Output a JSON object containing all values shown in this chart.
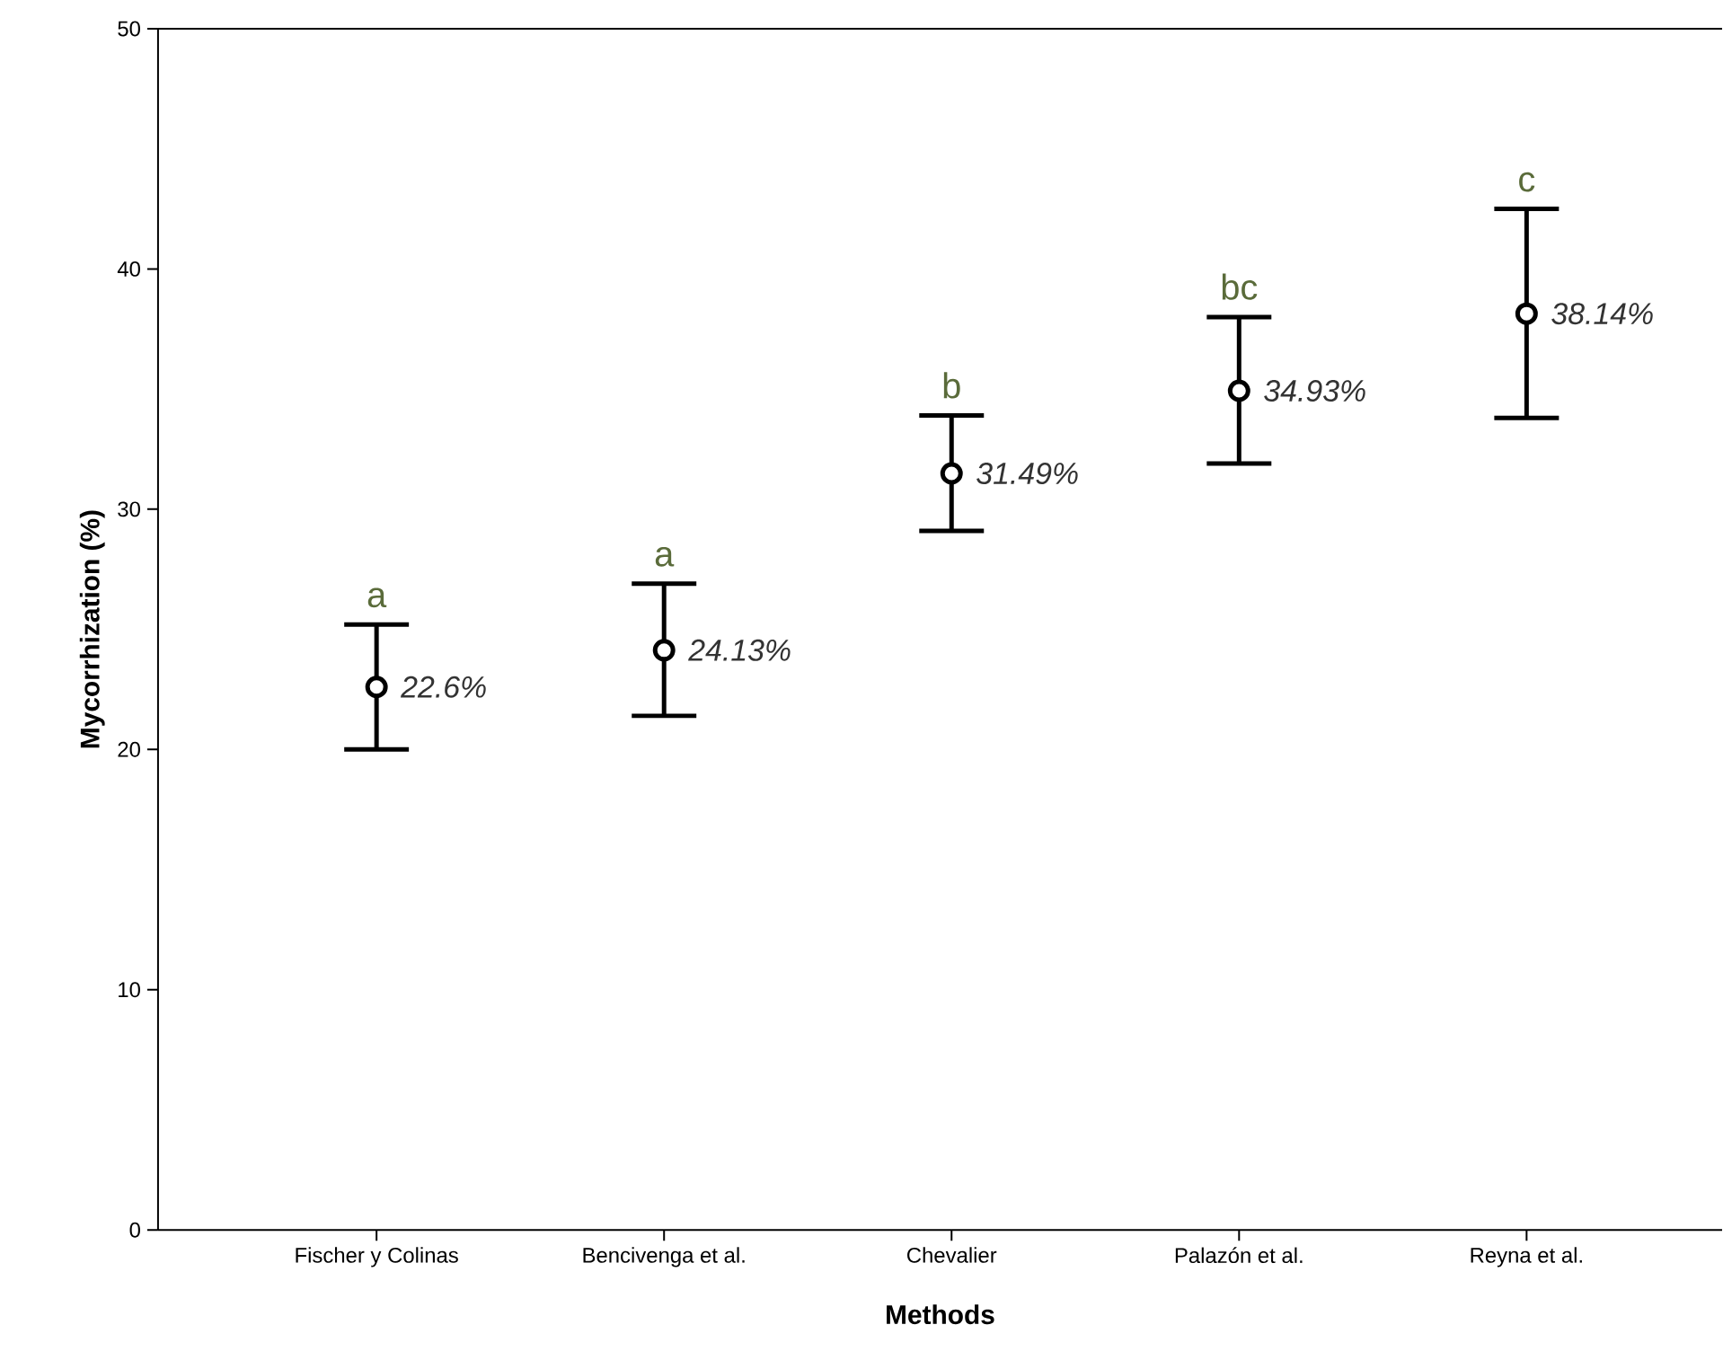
{
  "chart_data": {
    "type": "scatter",
    "xlabel": "Methods",
    "ylabel": "Mycorrhization (%)",
    "categories": [
      "Fischer y Colinas",
      "Bencivenga et al.",
      "Chevalier",
      "Palazón et al.",
      "Reyna et al."
    ],
    "values": [
      22.6,
      24.13,
      31.49,
      34.93,
      38.14
    ],
    "errors": [
      [
        20.0,
        25.2
      ],
      [
        21.4,
        26.9
      ],
      [
        29.1,
        33.9
      ],
      [
        31.9,
        38.0
      ],
      [
        33.8,
        42.5
      ]
    ],
    "value_labels": [
      "22.6%",
      "24.13%",
      "31.49%",
      "34.93%",
      "38.14%"
    ],
    "color": "#000000",
    "marker": "circle",
    "ylim": [
      0,
      50
    ],
    "yticks": [
      0,
      10,
      20,
      30,
      40,
      50
    ],
    "grid": false,
    "annotations": [
      "a",
      "a",
      "b",
      "bc",
      "c"
    ]
  }
}
